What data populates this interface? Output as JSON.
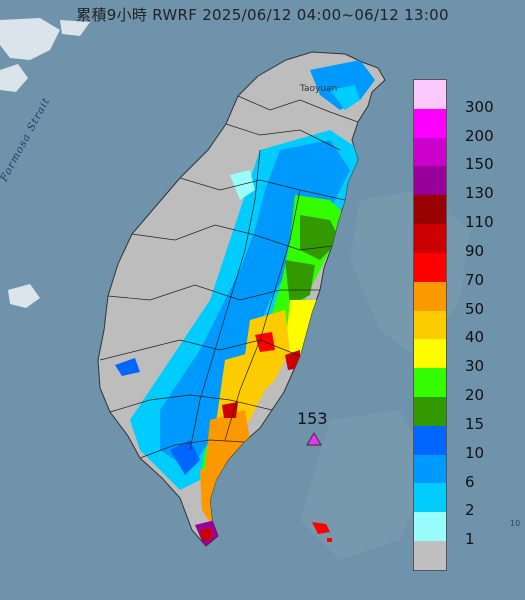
{
  "title": "累積9小時 RWRF 2025/06/12 04:00~06/12 13:00",
  "strait_label": "Formosa Strait",
  "city_label": "Taoyuan",
  "max_marker": {
    "value": "153",
    "color": "#ee33ee"
  },
  "edge_fragment": "10",
  "legend": {
    "unit_levels": [
      "300",
      "200",
      "150",
      "130",
      "110",
      "90",
      "70",
      "50",
      "40",
      "30",
      "20",
      "15",
      "10",
      "6",
      "2",
      "1"
    ],
    "colors": [
      "#fdc9fd",
      "#fd00fd",
      "#cc00cc",
      "#990099",
      "#990000",
      "#cc0000",
      "#fd0000",
      "#fd9900",
      "#fdcc00",
      "#fdfd00",
      "#33fd00",
      "#339900",
      "#0066fd",
      "#0099fd",
      "#00ccfd",
      "#99fdfd",
      "#c0c0c0"
    ]
  }
}
